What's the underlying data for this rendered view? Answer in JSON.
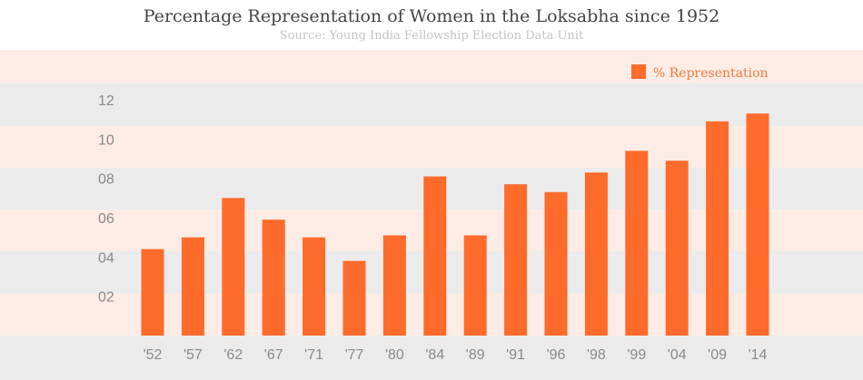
{
  "chart_data": {
    "type": "bar",
    "title": "Percentage Representation of Women in the Loksabha since 1952",
    "subtitle": "Source:  Young India Fellowship Election Data Unit",
    "xlabel": "",
    "ylabel": "",
    "categories": [
      "'52",
      "'57",
      "'62",
      "'67",
      "'71",
      "'77",
      "'80",
      "'84",
      "'89",
      "'91",
      "'96",
      "'98",
      "'99",
      "'04",
      "'09",
      "'14"
    ],
    "series": [
      {
        "name": "% Representation",
        "color": "#ff6b2b",
        "values": [
          4.4,
          5.0,
          7.0,
          5.9,
          5.0,
          3.8,
          5.1,
          8.1,
          5.1,
          7.7,
          7.3,
          8.3,
          9.4,
          8.9,
          10.9,
          11.3
        ]
      }
    ],
    "yticks": [
      "02",
      "04",
      "06",
      "08",
      "10",
      "12"
    ],
    "ytick_values": [
      2,
      4,
      6,
      8,
      10,
      12
    ],
    "ylim": [
      0,
      12.5
    ],
    "legend_position": "top-right",
    "band_colors": [
      "#fdece6",
      "#ebebeb"
    ]
  }
}
